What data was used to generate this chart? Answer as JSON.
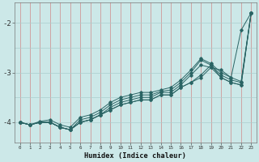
{
  "x": [
    0,
    1,
    2,
    3,
    4,
    5,
    6,
    7,
    8,
    9,
    10,
    11,
    12,
    13,
    14,
    15,
    16,
    17,
    18,
    19,
    20,
    21,
    22,
    23
  ],
  "line1": [
    -4.0,
    -4.05,
    -4.0,
    -4.0,
    -4.1,
    -4.15,
    -4.0,
    -3.95,
    -3.85,
    -3.75,
    -3.65,
    -3.6,
    -3.55,
    -3.55,
    -3.45,
    -3.45,
    -3.3,
    -3.2,
    -3.1,
    -2.9,
    -2.95,
    -3.1,
    -2.15,
    -1.8
  ],
  "line2": [
    -4.0,
    -4.05,
    -4.0,
    -4.0,
    -4.1,
    -4.15,
    -4.0,
    -3.95,
    -3.85,
    -3.75,
    -3.65,
    -3.6,
    -3.55,
    -3.55,
    -3.45,
    -3.45,
    -3.3,
    -3.2,
    -3.05,
    -2.85,
    -3.1,
    -3.2,
    -3.25,
    -1.8
  ],
  "line3": [
    -4.0,
    -4.05,
    -4.0,
    -4.0,
    -4.1,
    -4.15,
    -4.0,
    -3.95,
    -3.85,
    -3.7,
    -3.6,
    -3.55,
    -3.5,
    -3.5,
    -3.4,
    -3.4,
    -3.25,
    -3.05,
    -2.85,
    -2.9,
    -3.1,
    -3.2,
    -3.25,
    -1.8
  ],
  "line4": [
    -4.0,
    -4.05,
    -4.0,
    -4.0,
    -4.1,
    -4.15,
    -3.95,
    -3.9,
    -3.8,
    -3.65,
    -3.55,
    -3.5,
    -3.45,
    -3.45,
    -3.38,
    -3.35,
    -3.2,
    -3.0,
    -2.75,
    -2.85,
    -3.05,
    -3.15,
    -3.2,
    -1.8
  ],
  "line5": [
    -4.0,
    -4.05,
    -3.98,
    -3.95,
    -4.05,
    -4.1,
    -3.9,
    -3.85,
    -3.75,
    -3.6,
    -3.5,
    -3.45,
    -3.4,
    -3.4,
    -3.35,
    -3.3,
    -3.15,
    -2.95,
    -2.72,
    -2.82,
    -3.0,
    -3.1,
    -3.18,
    -1.8
  ],
  "bg_color": "#cce8e8",
  "line_color": "#2a6464",
  "grid_color": "#aacece",
  "red_grid_color": "#d08888",
  "xlabel": "Humidex (Indice chaleur)",
  "ylim": [
    -4.4,
    -1.6
  ],
  "xlim": [
    -0.5,
    23.5
  ]
}
